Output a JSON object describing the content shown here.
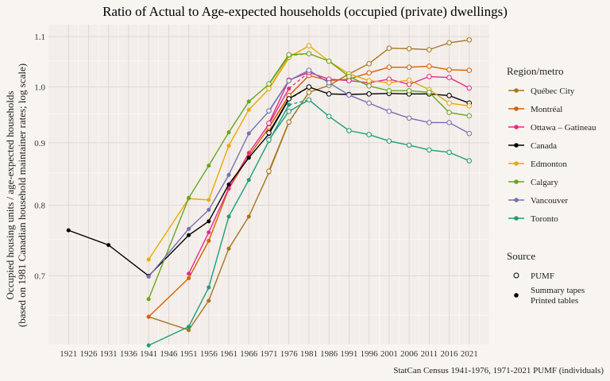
{
  "chart_data": {
    "type": "line",
    "title": "Ratio of Actual to Age-expected households (occupied (private) dwellings)",
    "ylabel_line1": "Occupied housing units / age-expected households",
    "ylabel_line2": "(based on 1981 Canadian household maintainer rates; log scale)",
    "xlabel": "",
    "caption": "StatCan Census 1941-1976, 1971-2021 PUMF (individuals)",
    "y_scale": "log",
    "ylim": [
      0.615,
      1.125
    ],
    "xlim": [
      1916,
      2026
    ],
    "x_ticks": [
      1921,
      1926,
      1931,
      1936,
      1941,
      1946,
      1951,
      1956,
      1961,
      1966,
      1971,
      1976,
      1981,
      1986,
      1991,
      1996,
      2001,
      2006,
      2011,
      2016,
      2021
    ],
    "y_ticks": [
      0.7,
      0.8,
      0.9,
      1.0,
      1.1
    ],
    "y_tick_labels": [
      "0.7",
      "0.8",
      "0.9",
      "1.0",
      "1.1"
    ],
    "grid": true,
    "legend_region_title": "Region/metro",
    "legend_source_title": "Source",
    "legend_source_items": [
      "PUMF",
      "Summary tapes",
      "Printed tables"
    ],
    "series": [
      {
        "name": "Québec City",
        "color": "#a6761d",
        "tables": [
          [
            1941,
            0.648
          ],
          [
            1951,
            0.632
          ],
          [
            1956,
            0.668
          ],
          [
            1961,
            0.737
          ],
          [
            1966,
            0.783
          ],
          [
            1971,
            0.851
          ],
          [
            1976,
            0.935
          ]
        ],
        "pumf": [
          [
            1971,
            0.853
          ],
          [
            1976,
            0.936
          ],
          [
            1981,
            0.99
          ],
          [
            1986,
            1.003
          ],
          [
            1991,
            1.025
          ],
          [
            1996,
            1.045
          ],
          [
            2001,
            1.076
          ],
          [
            2006,
            1.075
          ],
          [
            2011,
            1.073
          ],
          [
            2016,
            1.087
          ],
          [
            2021,
            1.093
          ]
        ]
      },
      {
        "name": "Montréal",
        "color": "#d95f02",
        "tables": [
          [
            1941,
            0.648
          ],
          [
            1951,
            0.697
          ],
          [
            1956,
            0.748
          ],
          [
            1961,
            0.825
          ],
          [
            1966,
            0.878
          ],
          [
            1971,
            0.926
          ],
          [
            1976,
            0.983
          ]
        ],
        "pumf": [
          [
            1971,
            0.927
          ],
          [
            1976,
            0.984
          ],
          [
            1981,
            1.022
          ],
          [
            1986,
            1.012
          ],
          [
            1991,
            1.015
          ],
          [
            1996,
            1.027
          ],
          [
            2001,
            1.038
          ],
          [
            2006,
            1.038
          ],
          [
            2011,
            1.04
          ],
          [
            2016,
            1.033
          ],
          [
            2021,
            1.032
          ]
        ]
      },
      {
        "name": "Ottawa – Gatineau",
        "color": "#e7298a",
        "tables": [
          [
            1951,
            0.703
          ],
          [
            1956,
            0.76
          ],
          [
            1961,
            0.826
          ],
          [
            1966,
            0.883
          ],
          [
            1971,
            0.932
          ],
          [
            1976,
            0.997
          ]
        ],
        "pumf": [
          [
            1971,
            0.934
          ],
          [
            1976,
            1.013
          ],
          [
            1981,
            1.028
          ],
          [
            1986,
            1.015
          ],
          [
            1991,
            1.012
          ],
          [
            1996,
            1.008
          ],
          [
            2001,
            1.015
          ],
          [
            2006,
            1.005
          ],
          [
            2011,
            1.02
          ],
          [
            2016,
            1.018
          ],
          [
            2021,
            0.998
          ]
        ]
      },
      {
        "name": "Canada",
        "color": "#000000",
        "tables": [
          [
            1921,
            0.763
          ],
          [
            1931,
            0.742
          ],
          [
            1941,
            0.7
          ],
          [
            1951,
            0.756
          ],
          [
            1956,
            0.776
          ],
          [
            1961,
            0.832
          ],
          [
            1966,
            0.875
          ],
          [
            1971,
            0.915
          ],
          [
            1976,
            0.977
          ]
        ],
        "pumf": [
          [
            1971,
            0.917
          ],
          [
            1976,
            0.978
          ],
          [
            1981,
            1.0
          ],
          [
            1986,
            0.987
          ],
          [
            1991,
            0.986
          ],
          [
            1996,
            0.987
          ],
          [
            2001,
            0.988
          ],
          [
            2006,
            0.987
          ],
          [
            2011,
            0.987
          ],
          [
            2016,
            0.984
          ],
          [
            2021,
            0.97
          ]
        ]
      },
      {
        "name": "Edmonton",
        "color": "#e6ab02",
        "tables": [
          [
            1941,
            0.722
          ],
          [
            1951,
            0.81
          ],
          [
            1956,
            0.808
          ],
          [
            1961,
            0.895
          ],
          [
            1966,
            0.958
          ],
          [
            1971,
            0.996
          ],
          [
            1976,
            1.056
          ]
        ],
        "pumf": [
          [
            1971,
            0.997
          ],
          [
            1976,
            1.058
          ],
          [
            1981,
            1.081
          ],
          [
            1986,
            1.05
          ],
          [
            1991,
            1.025
          ],
          [
            1996,
            1.012
          ],
          [
            2001,
            1.008
          ],
          [
            2006,
            1.013
          ],
          [
            2011,
            0.995
          ],
          [
            2016,
            0.97
          ],
          [
            2021,
            0.965
          ]
        ]
      },
      {
        "name": "Calgary",
        "color": "#66a61e",
        "tables": [
          [
            1941,
            0.67
          ],
          [
            1951,
            0.811
          ],
          [
            1956,
            0.862
          ],
          [
            1961,
            0.918
          ],
          [
            1966,
            0.973
          ],
          [
            1971,
            1.005
          ],
          [
            1976,
            1.061
          ]
        ],
        "pumf": [
          [
            1971,
            1.006
          ],
          [
            1976,
            1.063
          ],
          [
            1981,
            1.065
          ],
          [
            1986,
            1.05
          ],
          [
            1991,
            1.02
          ],
          [
            1996,
            1.002
          ],
          [
            2001,
            0.993
          ],
          [
            2006,
            0.993
          ],
          [
            2011,
            0.99
          ],
          [
            2016,
            0.953
          ],
          [
            2021,
            0.947
          ]
        ]
      },
      {
        "name": "Vancouver",
        "color": "#7570b3",
        "tables": [
          [
            1941,
            0.699
          ],
          [
            1951,
            0.765
          ],
          [
            1956,
            0.793
          ],
          [
            1961,
            0.847
          ],
          [
            1966,
            0.916
          ],
          [
            1971,
            0.955
          ],
          [
            1976,
            1.012
          ]
        ],
        "pumf": [
          [
            1971,
            0.956
          ],
          [
            1976,
            1.012
          ],
          [
            1981,
            1.032
          ],
          [
            1986,
            1.008
          ],
          [
            1991,
            0.985
          ],
          [
            1996,
            0.97
          ],
          [
            2001,
            0.955
          ],
          [
            2006,
            0.943
          ],
          [
            2011,
            0.935
          ],
          [
            2016,
            0.935
          ],
          [
            2021,
            0.916
          ]
        ]
      },
      {
        "name": "Toronto",
        "color": "#1b9e77",
        "tables": [
          [
            1941,
            0.614
          ],
          [
            1951,
            0.636
          ],
          [
            1956,
            0.685
          ],
          [
            1961,
            0.783
          ],
          [
            1966,
            0.839
          ],
          [
            1971,
            0.903
          ],
          [
            1976,
            0.967
          ]
        ],
        "pumf": [
          [
            1971,
            0.905
          ],
          [
            1976,
            0.955
          ],
          [
            1981,
            0.976
          ],
          [
            1986,
            0.946
          ],
          [
            1991,
            0.921
          ],
          [
            1996,
            0.914
          ],
          [
            2001,
            0.903
          ],
          [
            2006,
            0.896
          ],
          [
            2011,
            0.888
          ],
          [
            2016,
            0.884
          ],
          [
            2021,
            0.87
          ]
        ]
      }
    ]
  }
}
